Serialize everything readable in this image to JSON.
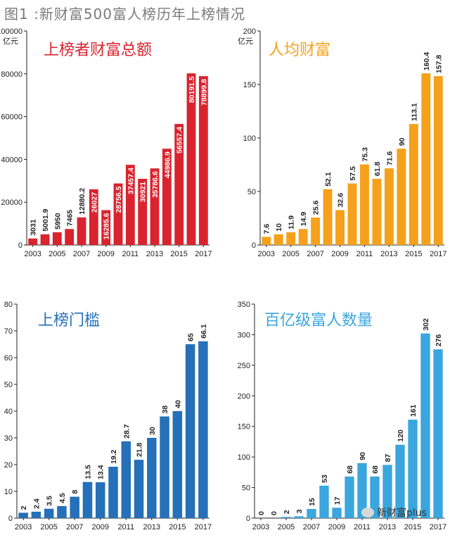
{
  "page_title": "图1 :新财富500富人榜历年上榜情况",
  "watermark": "新财富plus",
  "chart_data": [
    {
      "type": "bar",
      "title": "上榜者财富总额",
      "unit": "亿元",
      "color": "#d9232e",
      "title_color": "#d9232e",
      "label_inside": true,
      "ylim": [
        0,
        100000
      ],
      "yticks": [
        0,
        20000,
        40000,
        60000,
        80000,
        100000
      ],
      "x_tick_labels": [
        "2003",
        "2005",
        "2007",
        "2009",
        "2011",
        "2013",
        "2015",
        "2017"
      ],
      "categories": [
        "2003",
        "2004",
        "2005",
        "2006",
        "2007",
        "2008",
        "2009",
        "2010",
        "2011",
        "2012",
        "2013",
        "2014",
        "2015",
        "2016",
        "2017"
      ],
      "values": [
        3031,
        5001.9,
        5950,
        7465,
        12880.2,
        26027,
        16285.6,
        28756.5,
        37457.4,
        30921,
        35786.6,
        44986.9,
        56557.4,
        80191.5,
        78899.8
      ],
      "value_labels": [
        "3031",
        "5001.9",
        "5950",
        "7465",
        "12880.2",
        "26027",
        "16285.6",
        "28756.5",
        "37457.4",
        "30921",
        "35786.6",
        "44986.9",
        "56557.4",
        "80191.5",
        "78899.8"
      ]
    },
    {
      "type": "bar",
      "title": "人均财富",
      "unit": "亿元",
      "color": "#f5a11c",
      "title_color": "#f5a11c",
      "label_inside": false,
      "ylim": [
        0,
        200
      ],
      "yticks": [
        0,
        50,
        100,
        150,
        200
      ],
      "x_tick_labels": [
        "2003",
        "2005",
        "2007",
        "2009",
        "2011",
        "2013",
        "2015",
        "2017"
      ],
      "categories": [
        "2003",
        "2004",
        "2005",
        "2006",
        "2007",
        "2008",
        "2009",
        "2010",
        "2011",
        "2012",
        "2013",
        "2014",
        "2015",
        "2016",
        "2017"
      ],
      "values": [
        7.6,
        10,
        11.9,
        14.9,
        25.6,
        52.1,
        32.6,
        57.5,
        75.3,
        61.8,
        71.6,
        90,
        113.1,
        160.4,
        157.8
      ],
      "value_labels": [
        "7.6",
        "10",
        "11.9",
        "14.9",
        "25.6",
        "52.1",
        "32.6",
        "57.5",
        "75.3",
        "61.8",
        "71.6",
        "90",
        "113.1",
        "160.4",
        "157.8"
      ]
    },
    {
      "type": "bar",
      "title": "上榜门槛",
      "unit": "",
      "color": "#2570b8",
      "title_color": "#2570b8",
      "label_inside": false,
      "ylim": [
        0,
        80
      ],
      "yticks": [
        0,
        10,
        20,
        30,
        40,
        50,
        60,
        70,
        80
      ],
      "x_tick_labels": [
        "2003",
        "2005",
        "2007",
        "2009",
        "2011",
        "2013",
        "2015",
        "2017"
      ],
      "categories": [
        "2003",
        "2004",
        "2005",
        "2006",
        "2007",
        "2008",
        "2009",
        "2010",
        "2011",
        "2012",
        "2013",
        "2014",
        "2015",
        "2016",
        "2017"
      ],
      "values": [
        2,
        2.4,
        3.5,
        4.5,
        8,
        13.5,
        13.4,
        19.2,
        28.7,
        21.8,
        30,
        38,
        40,
        65,
        66.1
      ],
      "value_labels": [
        "2",
        "2.4",
        "3.5",
        "4.5",
        "8",
        "13.5",
        "13.4",
        "19.2",
        "28.7",
        "21.8",
        "30",
        "38",
        "40",
        "65",
        "66.1"
      ]
    },
    {
      "type": "bar",
      "title": "百亿级富人数量",
      "unit": "",
      "color": "#3aa6dd",
      "title_color": "#3aa6dd",
      "label_inside": false,
      "ylim": [
        0,
        350
      ],
      "yticks": [
        0,
        50,
        100,
        150,
        200,
        250,
        300,
        350
      ],
      "x_tick_labels": [
        "2003",
        "2005",
        "2007",
        "2009",
        "2011",
        "2013",
        "2015",
        "2017"
      ],
      "categories": [
        "2003",
        "2004",
        "2005",
        "2006",
        "2007",
        "2008",
        "2009",
        "2010",
        "2011",
        "2012",
        "2013",
        "2014",
        "2015",
        "2016",
        "2017"
      ],
      "values": [
        0,
        0,
        2,
        3,
        15,
        53,
        17,
        68,
        90,
        68,
        87,
        120,
        161,
        302,
        276
      ],
      "value_labels": [
        "0",
        "0",
        "2",
        "3",
        "15",
        "53",
        "17",
        "68",
        "90",
        "68",
        "87",
        "120",
        "161",
        "302",
        "276"
      ]
    }
  ]
}
